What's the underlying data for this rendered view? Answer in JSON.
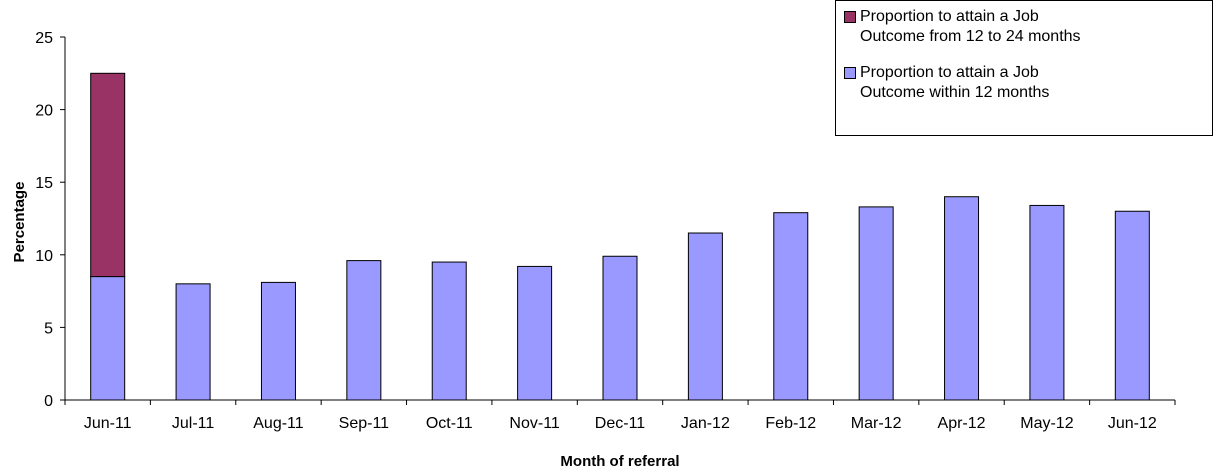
{
  "chart_data": {
    "type": "bar",
    "stacked": true,
    "x_label": "Month of referral",
    "y_label": "Percentage",
    "categories": [
      "Jun-11",
      "Jul-11",
      "Aug-11",
      "Sep-11",
      "Oct-11",
      "Nov-11",
      "Dec-11",
      "Jan-12",
      "Feb-12",
      "Mar-12",
      "Apr-12",
      "May-12",
      "Jun-12"
    ],
    "series": [
      {
        "name": "Proportion to attain a Job Outcome within 12 months",
        "color": "#9999ff",
        "values": [
          8.5,
          8.0,
          8.1,
          9.6,
          9.5,
          9.2,
          9.9,
          11.5,
          12.9,
          13.3,
          14.0,
          13.4,
          13.0
        ]
      },
      {
        "name": "Proportion to attain a Job Outcome from 12 to 24 months",
        "color": "#993366",
        "values": [
          14.0,
          null,
          null,
          null,
          null,
          null,
          null,
          null,
          null,
          null,
          null,
          null,
          null
        ]
      }
    ],
    "ylim": [
      0,
      25
    ],
    "yticks": [
      0,
      5,
      10,
      15,
      20,
      25
    ],
    "grid": false,
    "legend": "top-right"
  }
}
